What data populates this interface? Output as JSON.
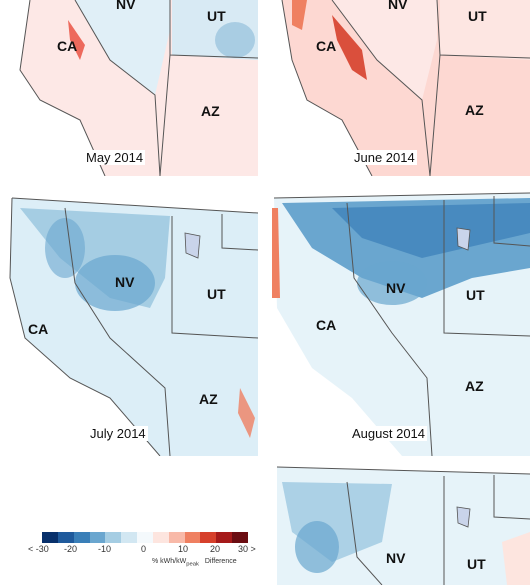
{
  "panels": [
    {
      "caption": "May 2014",
      "labels": [
        "NV",
        "UT",
        "CA",
        "AZ"
      ]
    },
    {
      "caption": "June 2014",
      "labels": [
        "NV",
        "UT",
        "CA",
        "AZ"
      ]
    },
    {
      "caption": "July 2014",
      "labels": [
        "NV",
        "UT",
        "CA",
        "AZ"
      ]
    },
    {
      "caption": "August 2014",
      "labels": [
        "NV",
        "UT",
        "CA",
        "AZ"
      ]
    },
    {
      "caption": "",
      "labels": [
        "NV",
        "UT"
      ]
    }
  ],
  "legend": {
    "ticks": [
      "< -30",
      "-20",
      "-10",
      "0",
      "10",
      "20",
      "30 >"
    ],
    "unit": "% kWh/kW",
    "unit_sub": "peak",
    "unit_suffix": "Difference",
    "colors": [
      "#08306b",
      "#1f5a9c",
      "#3a7fb8",
      "#6aa6cf",
      "#a5cde3",
      "#d2e7f2",
      "#f4f9fc",
      "#fde5df",
      "#f8b9a8",
      "#ef8061",
      "#d6402b",
      "#a51a1a",
      "#6b0d12"
    ]
  },
  "colors": {
    "land_blue": "#dceef7",
    "land_pink": "#fde8e6",
    "border": "#555555",
    "lake": "#c9d4ea"
  }
}
